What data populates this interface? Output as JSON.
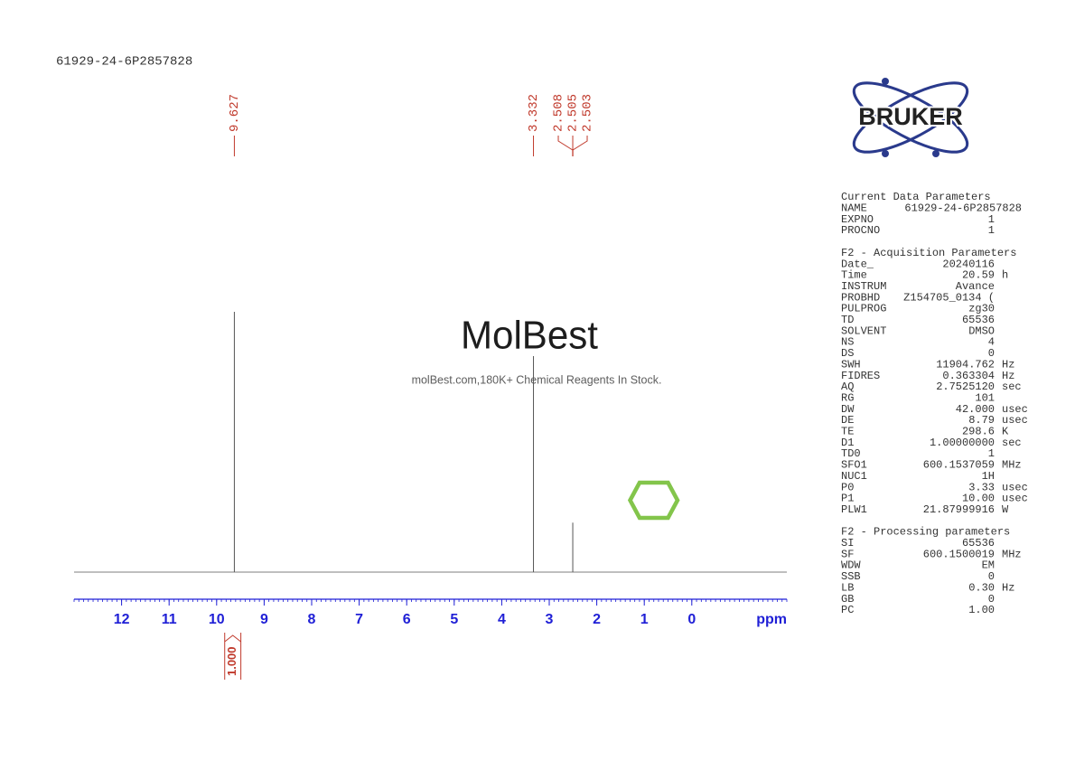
{
  "chart_data": {
    "type": "nmr",
    "title": "61929-24-6P2857828",
    "xlabel": "ppm",
    "xlim": [
      13,
      -2
    ],
    "xticks": [
      12,
      11,
      10,
      9,
      8,
      7,
      6,
      5,
      4,
      3,
      2,
      1,
      0
    ],
    "ylim": [
      0,
      100
    ],
    "peaks": {
      "x": [
        9.627,
        3.332,
        2.505
      ],
      "values": [
        100,
        83,
        19
      ]
    },
    "peak_labels": [
      9.627,
      3.332,
      2.508,
      2.505,
      2.503
    ],
    "integrals": [
      {
        "range": [
          9.83,
          9.49
        ],
        "value": {
          "value": 1,
          "label": "1.000"
        }
      }
    ],
    "color": "#555555",
    "axis_color": "#1f1fd6",
    "label_color": "#c0392b"
  },
  "logo": "BRUKER",
  "watermark": {
    "name": "MolBest",
    "tagline": "molBest.com,180K+ Chemical Reagents In Stock."
  },
  "parameters": [
    {
      "heading": "Current Data Parameters",
      "rows": [
        [
          "NAME",
          "61929-24-6P2857828"
        ],
        [
          "EXPNO",
          "1"
        ],
        [
          "PROCNO",
          "1"
        ]
      ]
    },
    {
      "heading": "F2 - Acquisition Parameters",
      "rows": [
        [
          "Date_",
          "20240116"
        ],
        [
          "Time",
          "20.59",
          "h"
        ],
        [
          "INSTRUM",
          "Avance"
        ],
        [
          "PROBHD",
          "Z154705_0134 ("
        ],
        [
          "PULPROG",
          "zg30"
        ],
        [
          "TD",
          "65536"
        ],
        [
          "SOLVENT",
          "DMSO"
        ],
        [
          "NS",
          "4"
        ],
        [
          "DS",
          "0"
        ],
        [
          "SWH",
          "11904.762",
          "Hz"
        ],
        [
          "FIDRES",
          "0.363304",
          "Hz"
        ],
        [
          "AQ",
          "2.7525120",
          "sec"
        ],
        [
          "RG",
          "101"
        ],
        [
          "DW",
          "42.000",
          "usec"
        ],
        [
          "DE",
          "8.79",
          "usec"
        ],
        [
          "TE",
          "298.6",
          "K"
        ],
        [
          "D1",
          "1.00000000",
          "sec"
        ],
        [
          "TD0",
          "1"
        ],
        [
          "SFO1",
          "600.1537059",
          "MHz"
        ],
        [
          "NUC1",
          "1H"
        ],
        [
          "P0",
          "3.33",
          "usec"
        ],
        [
          "P1",
          "10.00",
          "usec"
        ],
        [
          "PLW1",
          "21.87999916",
          "W"
        ]
      ]
    },
    {
      "heading": "F2 - Processing parameters",
      "rows": [
        [
          "SI",
          "65536"
        ],
        [
          "SF",
          "600.1500019",
          "MHz"
        ],
        [
          "WDW",
          "EM"
        ],
        [
          "SSB",
          "0"
        ],
        [
          "LB",
          "0.30",
          "Hz"
        ],
        [
          "GB",
          "0"
        ],
        [
          "PC",
          "1.00"
        ]
      ]
    }
  ]
}
